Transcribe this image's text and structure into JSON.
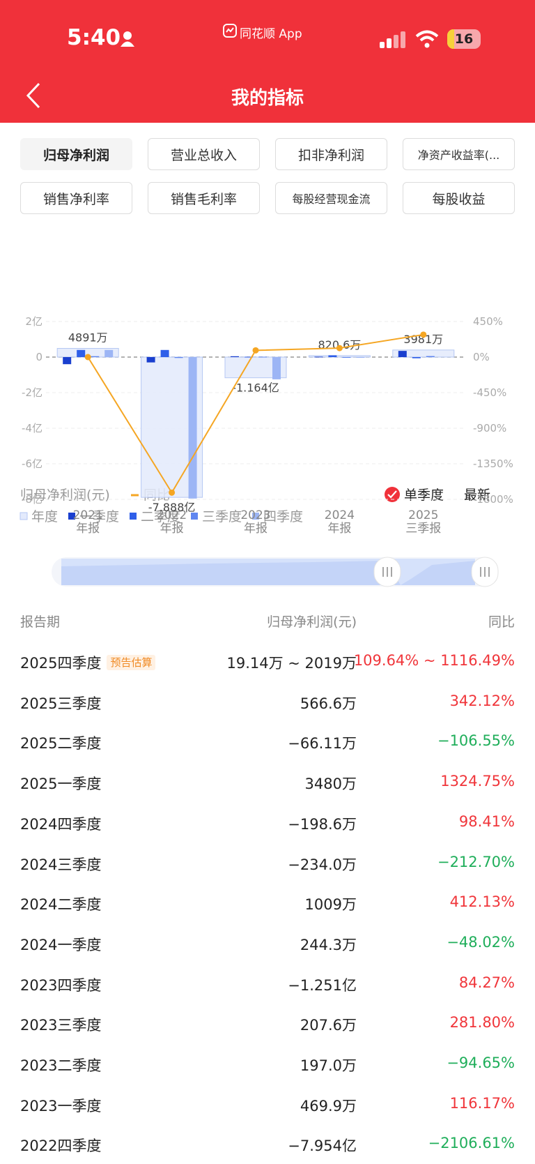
{
  "status_bar": {
    "time": "5:40",
    "app": "同花顺 App",
    "battery": "16"
  },
  "header": {
    "title": "我的指标"
  },
  "tabs": {
    "items": [
      "归母净利润",
      "营业总收入",
      "扣非净利润",
      "净资产收益率(...",
      "销售净利率",
      "销售毛利率",
      "每股经营现金流",
      "每股收益"
    ],
    "selected": 0
  },
  "chart_data": {
    "type": "bar_line",
    "title": "归母净利润(元)",
    "toggles": {
      "single_quarter": "单季度",
      "latest": "最新"
    },
    "categories": [
      [
        "2021",
        "年报"
      ],
      [
        "2022",
        "年报"
      ],
      [
        "2023",
        "年报"
      ],
      [
        "2024",
        "年报"
      ],
      [
        "2025",
        "三季报"
      ]
    ],
    "series": [
      {
        "name": "年度",
        "color": "#e3eafc",
        "values": [
          0.4891,
          -7.888,
          -1.164,
          0.08206,
          0.3981
        ],
        "value_labels": [
          "4891万",
          "-7.888亿",
          "-1.164亿",
          "820.6万",
          "3981万"
        ]
      },
      {
        "name": "一季度",
        "color": "#1a3fcf",
        "values": [
          -0.4,
          -0.3,
          0.04699,
          0.02443,
          0.348
        ]
      },
      {
        "name": "二季度",
        "color": "#2f5fe9",
        "values": [
          0.4,
          0.4,
          0.0197,
          0.1009,
          -0.06611
        ]
      },
      {
        "name": "三季度",
        "color": "#5f86f0",
        "values": [
          0.05,
          -0.05,
          0.02076,
          -0.0234,
          0.05666
        ]
      },
      {
        "name": "四季度",
        "color": "#9cb5f5",
        "values": [
          0.4,
          -7.954,
          -1.251,
          -0.01986,
          null
        ]
      },
      {
        "name": "同比",
        "color": "#f5a623",
        "axis": "y2",
        "values": [
          0,
          -1715,
          85,
          114,
          284
        ]
      }
    ],
    "ylim": [
      -8,
      2
    ],
    "yticks": [
      {
        "value": 2,
        "label": "2亿"
      },
      0,
      {
        "value": -2,
        "label": "-2亿"
      },
      {
        "value": -4,
        "label": "-4亿"
      },
      {
        "value": -6,
        "label": "-6亿"
      },
      {
        "value": -8,
        "label": "-8亿"
      }
    ],
    "y2lim": [
      -1800,
      450
    ],
    "y2ticks": [
      {
        "value": 450,
        "label": "450%"
      },
      {
        "value": 0,
        "label": "0%"
      },
      {
        "value": -450,
        "label": "-450%"
      },
      {
        "value": -900,
        "label": "-900%"
      },
      {
        "value": -1350,
        "label": "-1350%"
      },
      {
        "value": -1800,
        "label": "-1800%"
      }
    ],
    "grid": true
  },
  "table": {
    "columns": [
      "报告期",
      "归母净利润(元)",
      "同比"
    ],
    "rows": [
      {
        "period": "2025四季度",
        "tag": "预告估算",
        "value": "19.14万 ~ 2019万",
        "yoy": "109.64% ~ 1116.49%"
      },
      {
        "period": "2025三季度",
        "value": "566.6万",
        "yoy": "342.12%"
      },
      {
        "period": "2025二季度",
        "value": "−66.11万",
        "yoy": "−106.55%"
      },
      {
        "period": "2025一季度",
        "value": "3480万",
        "yoy": "1324.75%"
      },
      {
        "period": "2024四季度",
        "value": "−198.6万",
        "yoy": "98.41%"
      },
      {
        "period": "2024三季度",
        "value": "−234.0万",
        "yoy": "−212.70%"
      },
      {
        "period": "2024二季度",
        "value": "1009万",
        "yoy": "412.13%"
      },
      {
        "period": "2024一季度",
        "value": "244.3万",
        "yoy": "−48.02%"
      },
      {
        "period": "2023四季度",
        "value": "−1.251亿",
        "yoy": "84.27%"
      },
      {
        "period": "2023三季度",
        "value": "207.6万",
        "yoy": "281.80%"
      },
      {
        "period": "2023二季度",
        "value": "197.0万",
        "yoy": "−94.65%"
      },
      {
        "period": "2023一季度",
        "value": "469.9万",
        "yoy": "116.17%"
      },
      {
        "period": "2022四季度",
        "value": "−7.954亿",
        "yoy": "−2106.61%"
      }
    ]
  }
}
